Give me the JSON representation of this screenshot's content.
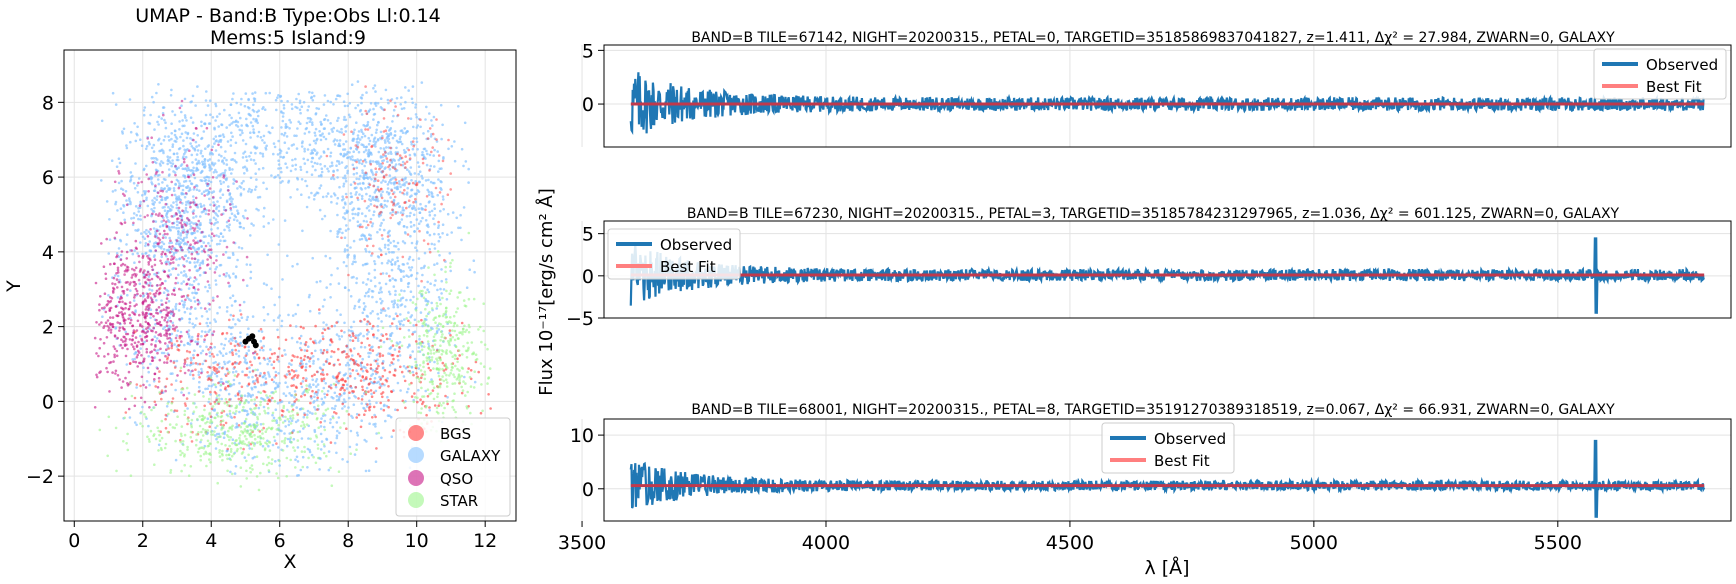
{
  "chart_data": [
    {
      "type": "scatter",
      "title_lines": [
        "UMAP  -  Band:B Type:Obs Ll:0.14",
        "Mems:5 Island:9"
      ],
      "xlabel": "X",
      "ylabel": "Y",
      "xlim": [
        -0.3,
        12.9
      ],
      "ylim": [
        -3.2,
        9.4
      ],
      "xticks": [
        0,
        2,
        4,
        6,
        8,
        10,
        12
      ],
      "yticks": [
        -2,
        0,
        2,
        4,
        6,
        8
      ],
      "grid": true,
      "legend_position": "lower-right",
      "series": [
        {
          "name": "BGS",
          "color": "#ff3b3b"
        },
        {
          "name": "GALAXY",
          "color": "#87c3ff"
        },
        {
          "name": "QSO",
          "color": "#c71585"
        },
        {
          "name": "STAR",
          "color": "#9cf58c"
        }
      ],
      "highlight_members": [
        [
          5.0,
          1.6
        ],
        [
          5.1,
          1.68
        ],
        [
          5.2,
          1.74
        ],
        [
          5.25,
          1.6
        ],
        [
          5.3,
          1.5
        ]
      ]
    },
    {
      "type": "line",
      "title": "BAND=B TILE=67142, NIGHT=20200315., PETAL=0, TARGETID=35185869837041827, z=1.411, Δχ² = 27.984, ZWARN=0, GALAXY",
      "xlim": [
        3545,
        5855
      ],
      "ylim": [
        -4,
        5.5
      ],
      "yticks": [
        0,
        5
      ],
      "ytick_labels": [
        "0",
        "5"
      ],
      "legend_position": "upper-right",
      "observed_amplitude": 1.8,
      "spike_at": null,
      "best_fit_level": 0.0,
      "series": [
        {
          "name": "Observed",
          "color": "#1f77b4"
        },
        {
          "name": "Best Fit",
          "color": "#ff7f7f"
        }
      ]
    },
    {
      "type": "line",
      "title": "BAND=B TILE=67230, NIGHT=20200315., PETAL=3, TARGETID=35185784231297965, z=1.036, Δχ² = 601.125, ZWARN=0, GALAXY",
      "xlim": [
        3545,
        5855
      ],
      "ylim": [
        -5,
        6.5
      ],
      "yticks": [
        -5,
        0,
        5
      ],
      "ytick_labels": [
        "−5",
        "0",
        "5"
      ],
      "legend_position": "upper-left",
      "observed_amplitude": 2.0,
      "spike_at": 5578,
      "best_fit_level": 0.1,
      "series": [
        {
          "name": "Observed",
          "color": "#1f77b4"
        },
        {
          "name": "Best Fit",
          "color": "#ff7f7f"
        }
      ]
    },
    {
      "type": "line",
      "title": "BAND=B TILE=68001, NIGHT=20200315., PETAL=8, TARGETID=35191270389318519, z=0.067, Δχ² = 66.931, ZWARN=0, GALAXY",
      "xlim": [
        3545,
        5855
      ],
      "ylim": [
        -6,
        13
      ],
      "yticks": [
        0,
        10
      ],
      "ytick_labels": [
        "0",
        "10"
      ],
      "legend_position": "upper-center",
      "observed_amplitude": 2.6,
      "spike_at": 5578,
      "best_fit_level": 0.6,
      "series": [
        {
          "name": "Observed",
          "color": "#1f77b4"
        },
        {
          "name": "Best Fit",
          "color": "#ff7f7f"
        }
      ]
    }
  ],
  "spectra_shared": {
    "xticks": [
      3500,
      4000,
      4500,
      5000,
      5500
    ],
    "xlabel": "λ [Å]",
    "ylabel": "Flux 10⁻¹⁷[erg/s cm² Å]"
  }
}
